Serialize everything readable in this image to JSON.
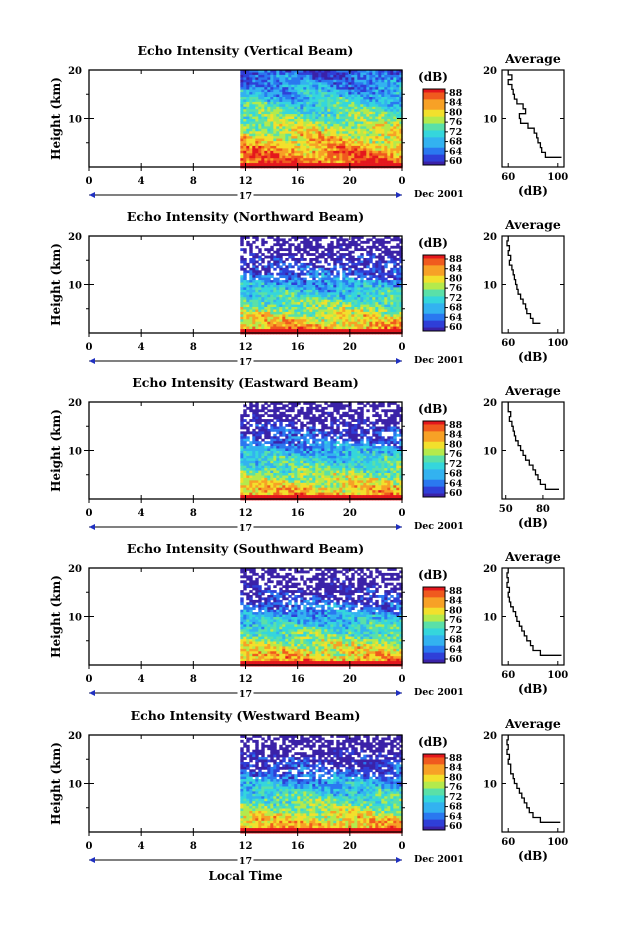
{
  "chart_data": [
    {
      "type": "heatmap",
      "title": "Echo Intensity (Vertical Beam)",
      "ylabel": "Height (km)",
      "xticks": [
        "0",
        "4",
        "8",
        "12",
        "16",
        "20",
        "0"
      ],
      "yticks": [
        "10",
        "20"
      ],
      "ylim": [
        0,
        20
      ],
      "date_label": "17",
      "month_label": "Dec 2001",
      "colorbar": {
        "label": "(dB)",
        "ticks": [
          "88",
          "84",
          "80",
          "76",
          "72",
          "68",
          "64",
          "60"
        ],
        "range": [
          60,
          88
        ]
      },
      "data_start_hour": 11.6,
      "avg_panel": {
        "title": "Average",
        "xlabel": "(dB)",
        "xticks": [
          "60",
          "100"
        ],
        "yticks": [
          "10",
          "20"
        ],
        "xlim": [
          55,
          105
        ],
        "profile": [
          [
            2,
            103
          ],
          [
            3,
            90
          ],
          [
            4,
            87
          ],
          [
            5,
            86
          ],
          [
            6,
            84
          ],
          [
            7,
            83
          ],
          [
            8,
            81
          ],
          [
            9,
            76
          ],
          [
            10,
            70
          ],
          [
            11,
            69
          ],
          [
            12,
            74
          ],
          [
            13,
            72
          ],
          [
            14,
            67
          ],
          [
            15,
            65
          ],
          [
            16,
            64
          ],
          [
            17,
            63
          ],
          [
            18,
            60
          ],
          [
            19,
            63
          ],
          [
            20,
            60
          ]
        ]
      }
    },
    {
      "type": "heatmap",
      "title": "Echo Intensity (Northward Beam)",
      "ylabel": "Height (km)",
      "xticks": [
        "0",
        "4",
        "8",
        "12",
        "16",
        "20",
        "0"
      ],
      "yticks": [
        "10",
        "20"
      ],
      "ylim": [
        0,
        20
      ],
      "date_label": "17",
      "month_label": "Dec 2001",
      "colorbar": {
        "label": "(dB)",
        "ticks": [
          "88",
          "84",
          "80",
          "76",
          "72",
          "68",
          "64",
          "60"
        ],
        "range": [
          60,
          88
        ]
      },
      "data_start_hour": 11.6,
      "avg_panel": {
        "title": "Average",
        "xlabel": "(dB)",
        "xticks": [
          "60",
          "100"
        ],
        "yticks": [
          "10",
          "20"
        ],
        "xlim": [
          55,
          105
        ],
        "profile": [
          [
            2,
            86
          ],
          [
            3,
            80
          ],
          [
            4,
            78
          ],
          [
            5,
            75
          ],
          [
            6,
            74
          ],
          [
            7,
            72
          ],
          [
            8,
            70
          ],
          [
            9,
            68
          ],
          [
            10,
            67
          ],
          [
            11,
            66
          ],
          [
            12,
            65
          ],
          [
            13,
            64
          ],
          [
            14,
            63
          ],
          [
            15,
            61
          ],
          [
            16,
            62
          ],
          [
            17,
            60
          ],
          [
            18,
            61
          ],
          [
            19,
            59
          ],
          [
            20,
            60
          ]
        ]
      }
    },
    {
      "type": "heatmap",
      "title": "Echo Intensity (Eastward Beam)",
      "ylabel": "Height (km)",
      "xticks": [
        "0",
        "4",
        "8",
        "12",
        "16",
        "20",
        "0"
      ],
      "yticks": [
        "10",
        "20"
      ],
      "ylim": [
        0,
        20
      ],
      "date_label": "17",
      "month_label": "Dec 2001",
      "colorbar": {
        "label": "(dB)",
        "ticks": [
          "88",
          "84",
          "80",
          "76",
          "72",
          "68",
          "64",
          "60"
        ],
        "range": [
          60,
          88
        ]
      },
      "data_start_hour": 11.6,
      "avg_panel": {
        "title": "Average",
        "xlabel": "(dB)",
        "xticks": [
          "50",
          "80"
        ],
        "yticks": [
          "10",
          "20"
        ],
        "xlim": [
          47,
          97
        ],
        "profile": [
          [
            2,
            93
          ],
          [
            3,
            82
          ],
          [
            4,
            78
          ],
          [
            5,
            76
          ],
          [
            6,
            74
          ],
          [
            7,
            72
          ],
          [
            8,
            69
          ],
          [
            9,
            66
          ],
          [
            10,
            64
          ],
          [
            11,
            62
          ],
          [
            12,
            60
          ],
          [
            13,
            58
          ],
          [
            14,
            57
          ],
          [
            15,
            56
          ],
          [
            16,
            55
          ],
          [
            17,
            53
          ],
          [
            18,
            54
          ],
          [
            19,
            52
          ],
          [
            20,
            52
          ]
        ]
      }
    },
    {
      "type": "heatmap",
      "title": "Echo Intensity (Southward Beam)",
      "ylabel": "Height (km)",
      "xticks": [
        "0",
        "4",
        "8",
        "12",
        "16",
        "20",
        "0"
      ],
      "yticks": [
        "10",
        "20"
      ],
      "ylim": [
        0,
        20
      ],
      "date_label": "17",
      "month_label": "Dec 2001",
      "colorbar": {
        "label": "(dB)",
        "ticks": [
          "88",
          "84",
          "80",
          "76",
          "72",
          "68",
          "64",
          "60"
        ],
        "range": [
          60,
          88
        ]
      },
      "data_start_hour": 11.6,
      "avg_panel": {
        "title": "Average",
        "xlabel": "(dB)",
        "xticks": [
          "60",
          "100"
        ],
        "yticks": [
          "10",
          "20"
        ],
        "xlim": [
          55,
          105
        ],
        "profile": [
          [
            2,
            103
          ],
          [
            3,
            86
          ],
          [
            4,
            80
          ],
          [
            5,
            78
          ],
          [
            6,
            75
          ],
          [
            7,
            73
          ],
          [
            8,
            71
          ],
          [
            9,
            69
          ],
          [
            10,
            67
          ],
          [
            11,
            66
          ],
          [
            12,
            64
          ],
          [
            13,
            62
          ],
          [
            14,
            61
          ],
          [
            15,
            60
          ],
          [
            16,
            61
          ],
          [
            17,
            59
          ],
          [
            18,
            60
          ],
          [
            19,
            59
          ],
          [
            20,
            60
          ]
        ]
      }
    },
    {
      "type": "heatmap",
      "title": "Echo Intensity (Westward Beam)",
      "ylabel": "Height (km)",
      "xticks": [
        "0",
        "4",
        "8",
        "12",
        "16",
        "20",
        "0"
      ],
      "yticks": [
        "10",
        "20"
      ],
      "ylim": [
        0,
        20
      ],
      "date_label": "17",
      "month_label": "Dec 2001",
      "colorbar": {
        "label": "(dB)",
        "ticks": [
          "88",
          "84",
          "80",
          "76",
          "72",
          "68",
          "64",
          "60"
        ],
        "range": [
          60,
          88
        ]
      },
      "data_start_hour": 11.6,
      "avg_panel": {
        "title": "Average",
        "xlabel": "(dB)",
        "xticks": [
          "60",
          "100"
        ],
        "yticks": [
          "10",
          "20"
        ],
        "xlim": [
          55,
          105
        ],
        "profile": [
          [
            2,
            102
          ],
          [
            3,
            86
          ],
          [
            4,
            80
          ],
          [
            5,
            77
          ],
          [
            6,
            75
          ],
          [
            7,
            73
          ],
          [
            8,
            71
          ],
          [
            9,
            69
          ],
          [
            10,
            67
          ],
          [
            11,
            65
          ],
          [
            12,
            64
          ],
          [
            13,
            62
          ],
          [
            14,
            62
          ],
          [
            15,
            60
          ],
          [
            16,
            61
          ],
          [
            17,
            59
          ],
          [
            18,
            60
          ],
          [
            19,
            59
          ],
          [
            20,
            60
          ]
        ]
      }
    }
  ],
  "xlabel": "Local Time"
}
